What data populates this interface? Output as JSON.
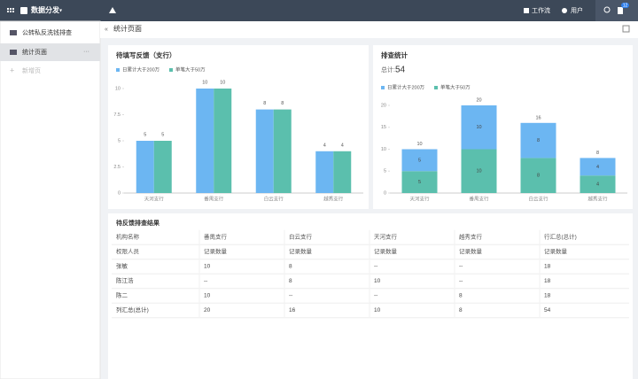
{
  "header": {
    "app_name": "数据分发",
    "nav": [
      "工作流",
      "用户"
    ],
    "badge": 12
  },
  "sidebar": {
    "items": [
      "公转私反洗钱排查",
      "统计页面"
    ],
    "add_label": "新增页"
  },
  "page": {
    "title": "统计页面"
  },
  "chart_data": [
    {
      "type": "bar",
      "title": "待填写反馈（支行）",
      "categories": [
        "天河支行",
        "番禺支行",
        "白云支行",
        "越秀支行"
      ],
      "series": [
        {
          "name": "日累计大于200万",
          "color": "#6cb6f2",
          "values": [
            5,
            10,
            8,
            4
          ]
        },
        {
          "name": "单笔大于50万",
          "color": "#5bbfad",
          "values": [
            5,
            10,
            8,
            4
          ]
        }
      ],
      "ylim": [
        0,
        10
      ],
      "yticks": [
        0,
        2.5,
        5,
        7.5,
        10
      ],
      "grid": false
    },
    {
      "type": "stacked_bar",
      "title": "排查统计",
      "total_label": "总计:",
      "total": 54,
      "categories": [
        "天河支行",
        "番禺支行",
        "白云支行",
        "越秀支行"
      ],
      "series": [
        {
          "name": "日累计大于200万",
          "color": "#6cb6f2",
          "values": [
            5,
            10,
            8,
            4
          ]
        },
        {
          "name": "单笔大于50万",
          "color": "#5bbfad",
          "values": [
            5,
            10,
            8,
            4
          ]
        }
      ],
      "totals": [
        10,
        20,
        16,
        8
      ],
      "ylim": [
        0,
        20
      ],
      "yticks": [
        0,
        5,
        10,
        15,
        20
      ],
      "grid": false
    }
  ],
  "table": {
    "title": "待反馈排查结果",
    "header": [
      [
        "机构名称",
        "番禺支行",
        "白云支行",
        "天河支行",
        "越秀支行",
        "行汇总(总计)"
      ],
      [
        "权限人员",
        "记录数量",
        "记录数量",
        "记录数量",
        "记录数量",
        "记录数量"
      ]
    ],
    "rows": [
      [
        "张敏",
        10,
        8,
        "--",
        "--",
        18
      ],
      [
        "陈江浩",
        "--",
        8,
        10,
        "--",
        18
      ],
      [
        "陈二",
        10,
        "--",
        "--",
        8,
        18
      ],
      [
        "列汇总(总计)",
        20,
        16,
        10,
        8,
        54
      ]
    ]
  }
}
